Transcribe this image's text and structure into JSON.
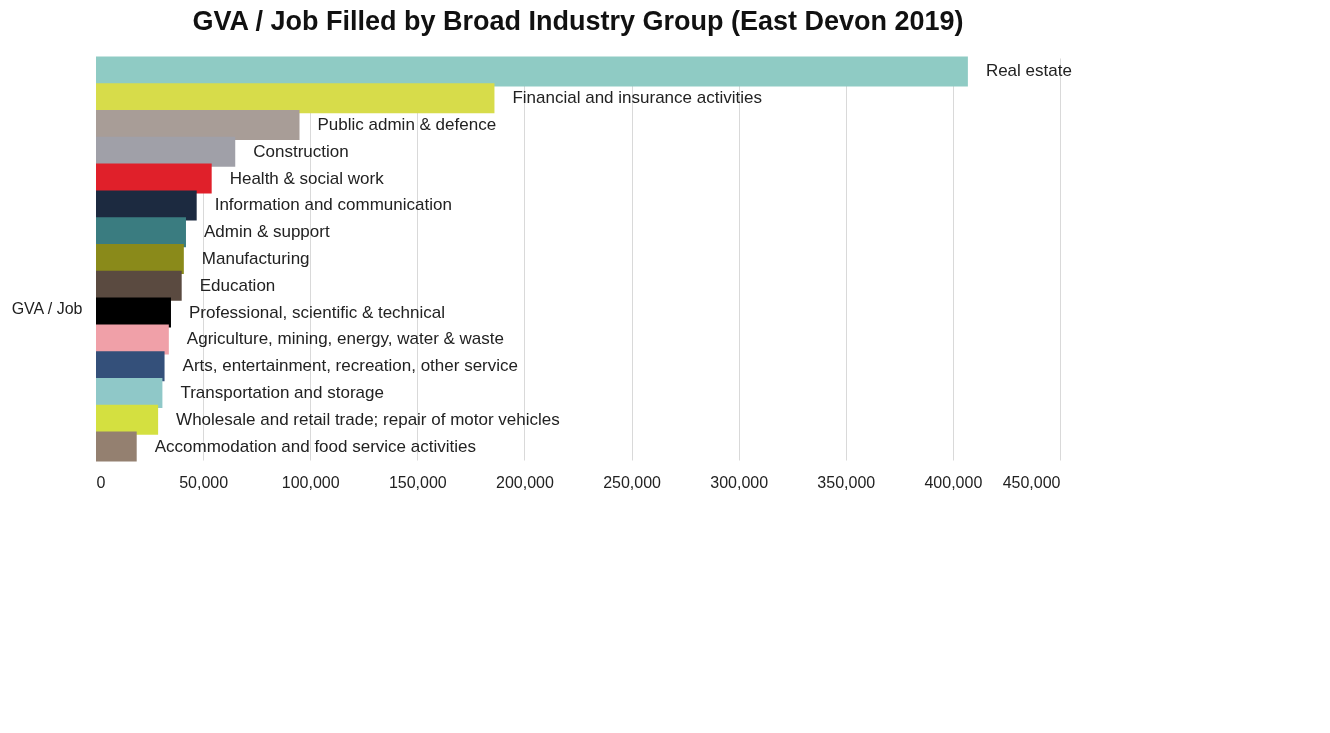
{
  "chart_data": {
    "type": "bar",
    "orientation": "horizontal",
    "title": "GVA / Job Filled by Broad Industry Group (East Devon 2019)",
    "ylabel": "GVA / Job",
    "categories": [
      "Real estate",
      "Financial and insurance activities",
      "Public admin & defence",
      "Construction",
      "Health & social work",
      "Information and communication",
      "Admin & support",
      "Manufacturing",
      "Education",
      "Professional, scientific & technical",
      "Agriculture, mining, energy, water & waste",
      "Arts, entertainment, recreation, other service",
      "Transportation and storage",
      "Wholesale and retail trade; repair of motor vehicles",
      "Accommodation and food service activities"
    ],
    "values": [
      407000,
      186000,
      95000,
      65000,
      54000,
      47000,
      42000,
      41000,
      40000,
      35000,
      34000,
      32000,
      31000,
      29000,
      19000
    ],
    "colors": [
      "#8fcbc4",
      "#d7dc4a",
      "#a89d97",
      "#a0a0a8",
      "#e0202a",
      "#1c2a40",
      "#3a7c80",
      "#8a8a1a",
      "#5a4a40",
      "#000000",
      "#f0a0a8",
      "#34507a",
      "#8fc8c8",
      "#d4e040",
      "#948070"
    ],
    "xlim": [
      0,
      450000
    ],
    "xticks": [
      0,
      {
        "value": 50000,
        "label": "50,000"
      },
      {
        "value": 100000,
        "label": "100,000"
      },
      {
        "value": 150000,
        "label": "150,000"
      },
      {
        "value": 200000,
        "label": "200,000"
      },
      {
        "value": 250000,
        "label": "250,000"
      },
      {
        "value": 300000,
        "label": "300,000"
      },
      {
        "value": 350000,
        "label": "350,000"
      },
      {
        "value": 400000,
        "label": "400,000"
      },
      {
        "value": 450000,
        "label": "450,000"
      }
    ],
    "grid": "x",
    "tick_labels": "x",
    "legend": false
  }
}
